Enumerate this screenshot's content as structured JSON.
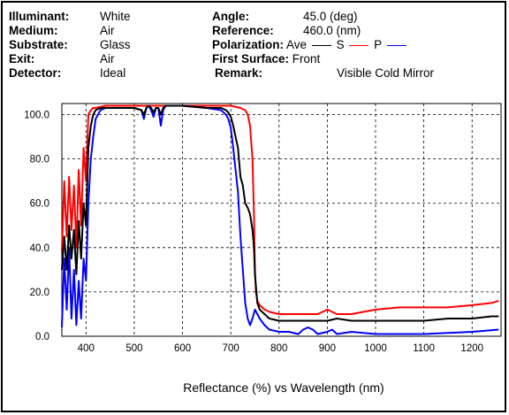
{
  "header": {
    "illuminant_label": "Illuminant:",
    "illuminant": "White",
    "medium_label": "Medium:",
    "medium": "Air",
    "substrate_label": "Substrate:",
    "substrate": "Glass",
    "exit_label": "Exit:",
    "exit": "Air",
    "detector_label": "Detector:",
    "detector": "Ideal",
    "angle_label": "Angle:",
    "angle": "45.0 (deg)",
    "reference_label": "Reference:",
    "reference": "460.0 (nm)",
    "polarization_label": "Polarization:",
    "pol_ave": "Ave",
    "pol_s": "S",
    "pol_p": "P",
    "first_surface_label": "First Surface:",
    "first_surface": "Front",
    "remark_label": "Remark:",
    "remark": "Visible Cold Mirror"
  },
  "colors": {
    "ave": "#000000",
    "s": "#ff0000",
    "p": "#0000ff",
    "grid": "#000000"
  },
  "chart_data": {
    "type": "line",
    "xlabel": "Reflectance (%) vs Wavelength (nm)",
    "ylabel": "",
    "xlim": [
      350,
      1260
    ],
    "ylim": [
      0,
      105
    ],
    "xticks": [
      "400",
      "500",
      "600",
      "700",
      "800",
      "900",
      "1000",
      "1100",
      "1200"
    ],
    "yticks": [
      "0.0",
      "20.0",
      "40.0",
      "60.0",
      "80.0",
      "100.0"
    ],
    "grid": "dashed",
    "series": [
      {
        "name": "S",
        "key": "s",
        "x": [
          350,
          355,
          360,
          365,
          370,
          375,
          380,
          385,
          390,
          395,
          400,
          405,
          410,
          415,
          420,
          440,
          500,
          600,
          650,
          700,
          720,
          730,
          735,
          740,
          745,
          748,
          750,
          752,
          755,
          760,
          770,
          780,
          800,
          850,
          880,
          900,
          920,
          950,
          1000,
          1050,
          1100,
          1150,
          1200,
          1240,
          1255
        ],
        "y": [
          38,
          70,
          45,
          72,
          48,
          68,
          40,
          75,
          50,
          85,
          70,
          100,
          102,
          103,
          103,
          104,
          104,
          104,
          104,
          104,
          103,
          102,
          100,
          95,
          80,
          55,
          30,
          20,
          16,
          14,
          12,
          11,
          10,
          10,
          10,
          12,
          10,
          10,
          12,
          13,
          13,
          13,
          14,
          15,
          16
        ]
      },
      {
        "name": "P",
        "key": "p",
        "x": [
          350,
          355,
          360,
          365,
          370,
          375,
          380,
          385,
          390,
          395,
          400,
          405,
          410,
          415,
          420,
          430,
          440,
          500,
          515,
          520,
          525,
          530,
          535,
          540,
          545,
          550,
          555,
          560,
          565,
          600,
          650,
          680,
          690,
          695,
          700,
          705,
          710,
          715,
          720,
          725,
          730,
          735,
          740,
          745,
          750,
          760,
          770,
          780,
          800,
          820,
          840,
          850,
          860,
          870,
          880,
          900,
          910,
          920,
          950,
          1000,
          1100,
          1200,
          1255
        ],
        "y": [
          4,
          35,
          12,
          40,
          8,
          30,
          5,
          25,
          8,
          35,
          25,
          60,
          80,
          90,
          98,
          102,
          103,
          103,
          102,
          98,
          103,
          104,
          102,
          99,
          103,
          103,
          95,
          102,
          104,
          104,
          103,
          102,
          100,
          98,
          94,
          85,
          75,
          65,
          45,
          30,
          15,
          8,
          5,
          8,
          12,
          8,
          5,
          3,
          2,
          2,
          1,
          3,
          4,
          3,
          1,
          2,
          3,
          1,
          2,
          1,
          1,
          2,
          3
        ]
      },
      {
        "name": "Ave",
        "key": "ave",
        "x": [
          350,
          355,
          360,
          365,
          370,
          375,
          380,
          385,
          390,
          395,
          400,
          405,
          410,
          415,
          420,
          430,
          440,
          500,
          515,
          520,
          525,
          530,
          535,
          540,
          545,
          550,
          555,
          560,
          565,
          600,
          650,
          680,
          690,
          695,
          700,
          705,
          710,
          715,
          720,
          725,
          730,
          735,
          740,
          745,
          748,
          750,
          755,
          760,
          770,
          780,
          800,
          820,
          850,
          880,
          900,
          920,
          950,
          1000,
          1050,
          1100,
          1150,
          1200,
          1240,
          1255
        ],
        "y": [
          30,
          45,
          30,
          50,
          35,
          48,
          28,
          52,
          35,
          60,
          50,
          85,
          95,
          100,
          102,
          103,
          103,
          103,
          102,
          100,
          103,
          104,
          103,
          101,
          103,
          103,
          100,
          103,
          104,
          104,
          103,
          103,
          102,
          101,
          99,
          95,
          90,
          85,
          72,
          68,
          60,
          58,
          55,
          48,
          40,
          28,
          15,
          12,
          10,
          8,
          7,
          7,
          7,
          7,
          7,
          8,
          7,
          7,
          7,
          7,
          8,
          8,
          9,
          9
        ]
      }
    ]
  }
}
